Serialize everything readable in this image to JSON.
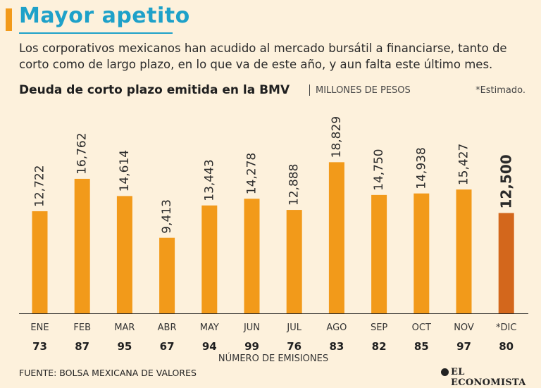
{
  "header": {
    "title": "Mayor apetito",
    "subtitle": "Los corporativos mexicanos han acudido al mercado bursátil a financiarse, tanto de corto como de largo plazo, en lo que va de este año, y aun falta este último mes."
  },
  "colors": {
    "accent": "#f29a1a",
    "title": "#1ea1c9",
    "bar": "#f29a1a",
    "bar_estimated": "#d3671c",
    "background": "#fdf1dc"
  },
  "chart_data": {
    "type": "bar",
    "title": "Deuda de corto plazo emitida en la BMV",
    "unit": "MILLONES DE PESOS",
    "note": "*Estimado.",
    "categories": [
      "ENE",
      "FEB",
      "MAR",
      "ABR",
      "MAY",
      "JUN",
      "JUL",
      "AGO",
      "SEP",
      "OCT",
      "NOV",
      "*DIC"
    ],
    "value_labels": [
      "12,722",
      "16,762",
      "14,614",
      "9,413",
      "13,443",
      "14,278",
      "12,888",
      "18,829",
      "14,750",
      "14,938",
      "15,427",
      "12,500"
    ],
    "values": [
      12722,
      16762,
      14614,
      9413,
      13443,
      14278,
      12888,
      18829,
      14750,
      14938,
      15427,
      12500
    ],
    "estimated": [
      false,
      false,
      false,
      false,
      false,
      false,
      false,
      false,
      false,
      false,
      false,
      true
    ],
    "emissions": [
      "73",
      "87",
      "95",
      "67",
      "94",
      "99",
      "76",
      "83",
      "82",
      "85",
      "97",
      "80"
    ],
    "emissions_label": "NÚMERO DE EMISIONES",
    "ylim": [
      0,
      20000
    ]
  },
  "footer": {
    "source": "FUENTE: BOLSA MEXICANA DE VALORES",
    "brand": "EL ECONOMISTA"
  }
}
